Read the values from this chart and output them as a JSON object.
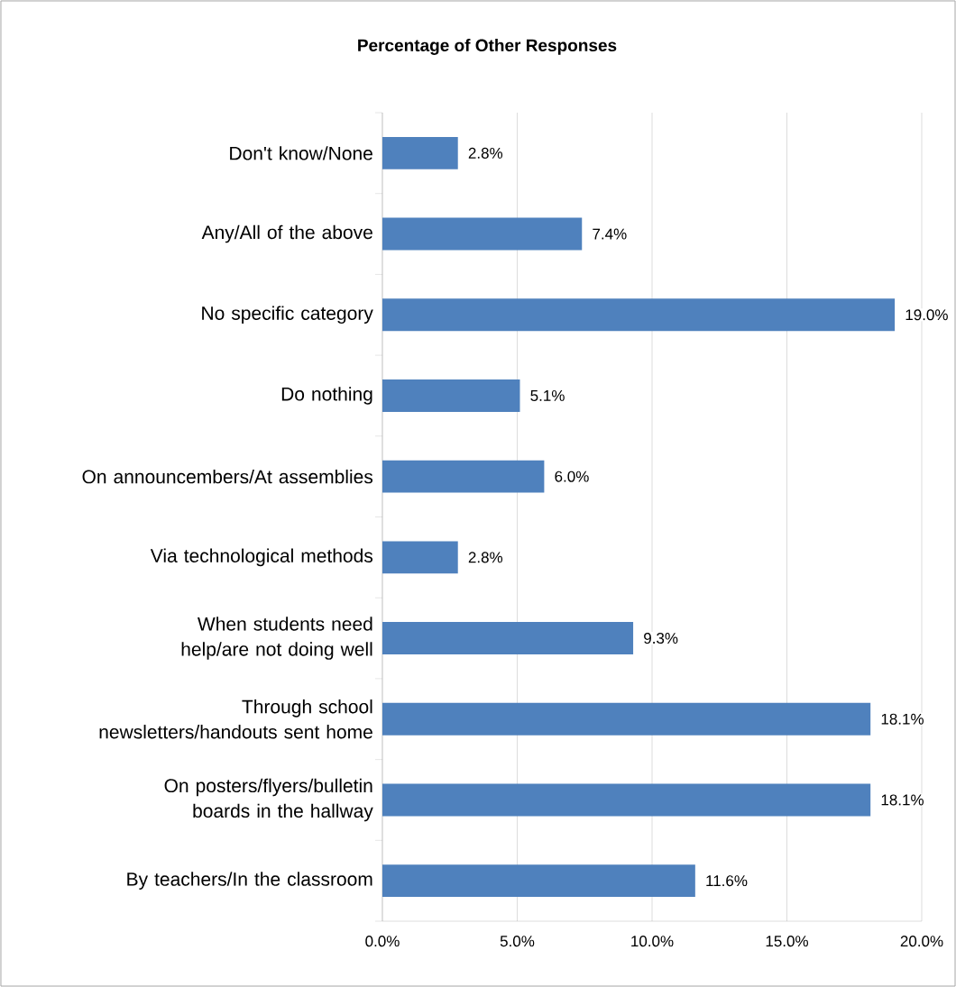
{
  "chart_data": {
    "type": "bar",
    "orientation": "horizontal",
    "title": "Percentage of Other Responses",
    "categories": [
      "Don't know/None",
      "Any/All of the above",
      "No specific category",
      "Do nothing",
      "On announcembers/At assemblies",
      "Via technological methods",
      "When students need help/are not doing well",
      "Through school newsletters/handouts sent home",
      "On posters/flyers/bulletin boards in the hallway",
      "By teachers/In the classroom"
    ],
    "values": [
      2.8,
      7.4,
      19.0,
      5.1,
      6.0,
      2.8,
      9.3,
      18.1,
      18.1,
      11.6
    ],
    "value_labels": [
      "2.8%",
      "7.4%",
      "19.0%",
      "5.1%",
      "6.0%",
      "2.8%",
      "9.3%",
      "18.1%",
      "18.1%",
      "11.6%"
    ],
    "color": "#4f81bd",
    "xlim": [
      0,
      20
    ],
    "xticks": [
      {
        "value": 0,
        "label": "0.0%"
      },
      {
        "value": 5,
        "label": "5.0%"
      },
      {
        "value": 10,
        "label": "10.0%"
      },
      {
        "value": 15,
        "label": "15.0%"
      },
      {
        "value": 20,
        "label": "20.0%"
      }
    ],
    "grid": "x"
  }
}
